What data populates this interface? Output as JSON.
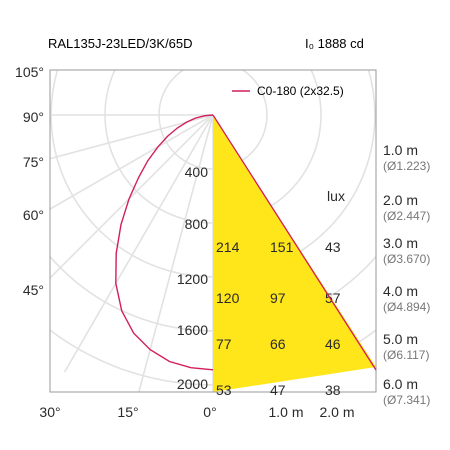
{
  "header": {
    "model": "RAL135J-23LED/3K/65D",
    "intensity_label": "I₀ 1888 cd"
  },
  "colors": {
    "cone_fill": "#ffe61a",
    "polar_curve": "#d11f5a",
    "grid": "#e2e2e2",
    "frame": "#9a9a9a",
    "text": "#2a2a2a",
    "diameter_text": "#777777"
  },
  "chart_data": {
    "type": "line",
    "title": "RAL135J-23LED/3K/65D",
    "legend": {
      "entries": [
        "C0-180 (2x32.5)"
      ],
      "position": "top-right"
    },
    "polar": {
      "unit": "cd",
      "peak_intensity_cd": 1888,
      "angle_labels": [
        "105°",
        "90°",
        "75°",
        "60°",
        "45°"
      ],
      "radial_labels": [
        "400",
        "800",
        "1200",
        "1600",
        "2000"
      ],
      "bottom_labels": [
        "30°",
        "15°",
        "0°",
        "1.0 m",
        "2.0 m"
      ],
      "curve": {
        "name": "C0-180 (2x32.5)",
        "angles_deg": [
          0,
          5,
          10,
          15,
          20,
          25,
          30,
          35,
          40,
          45,
          50,
          55,
          60,
          65,
          70,
          75,
          80,
          85,
          90
        ],
        "intensity_cd": [
          1888,
          1880,
          1855,
          1800,
          1720,
          1600,
          1440,
          1250,
          1060,
          880,
          720,
          590,
          470,
          370,
          280,
          200,
          130,
          60,
          0
        ]
      }
    },
    "illuminance": {
      "unit_label": "lux",
      "rows": [
        {
          "distance": "1.0 m",
          "diameter": "(Ø1.223)",
          "values": []
        },
        {
          "distance": "2.0 m",
          "diameter": "(Ø2.447)",
          "values": []
        },
        {
          "distance": "3.0 m",
          "diameter": "(Ø3.670)",
          "values": [
            "214",
            "151",
            "43"
          ]
        },
        {
          "distance": "4.0 m",
          "diameter": "(Ø4.894)",
          "values": [
            "120",
            "97",
            "57"
          ]
        },
        {
          "distance": "5.0 m",
          "diameter": "(Ø6.117)",
          "values": [
            "77",
            "66",
            "46"
          ]
        },
        {
          "distance": "6.0 m",
          "diameter": "(Ø7.341)",
          "values": [
            "53",
            "47",
            "38"
          ]
        }
      ]
    }
  }
}
